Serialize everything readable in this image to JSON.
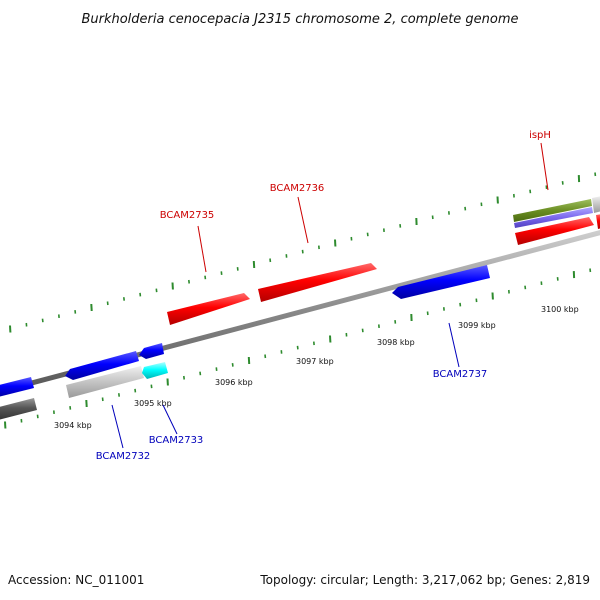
{
  "title": "Burkholderia cenocepacia J2315 chromosome 2, complete genome",
  "colors": {
    "forward_gene": "#ff0000",
    "reverse_gene": "#0000ff",
    "cyan_gene": "#00ffff",
    "grey_gene": "#c8c8c8",
    "dark_grey_gene": "#555555",
    "olive_feature": "#6b8e23",
    "purple_feature": "#7b68ee",
    "backbone": "#888888",
    "tick_marks": "#2e8b2e",
    "forward_label": "#cc0000",
    "reverse_label": "#0000bb"
  },
  "chart_data": {
    "type": "genome-map",
    "axis_unit": "kbp",
    "tick_labels": [
      "3094 kbp",
      "3095 kbp",
      "3096 kbp",
      "3097 kbp",
      "3098 kbp",
      "3099 kbp",
      "3100 kbp"
    ],
    "genes": [
      {
        "label": "BCAM2732",
        "strand": "reverse",
        "color": "reverse"
      },
      {
        "label": "BCAM2733",
        "strand": "reverse",
        "color": "reverse"
      },
      {
        "label": "BCAM2735",
        "strand": "forward",
        "color": "forward"
      },
      {
        "label": "BCAM2736",
        "strand": "forward",
        "color": "forward"
      },
      {
        "label": "BCAM2737",
        "strand": "reverse",
        "color": "reverse"
      },
      {
        "label": "ispH",
        "strand": "forward",
        "color": "forward"
      }
    ]
  },
  "footer": {
    "accession": "Accession: NC_011001",
    "summary": "Topology: circular; Length: 3,217,062 bp; Genes: 2,819"
  }
}
